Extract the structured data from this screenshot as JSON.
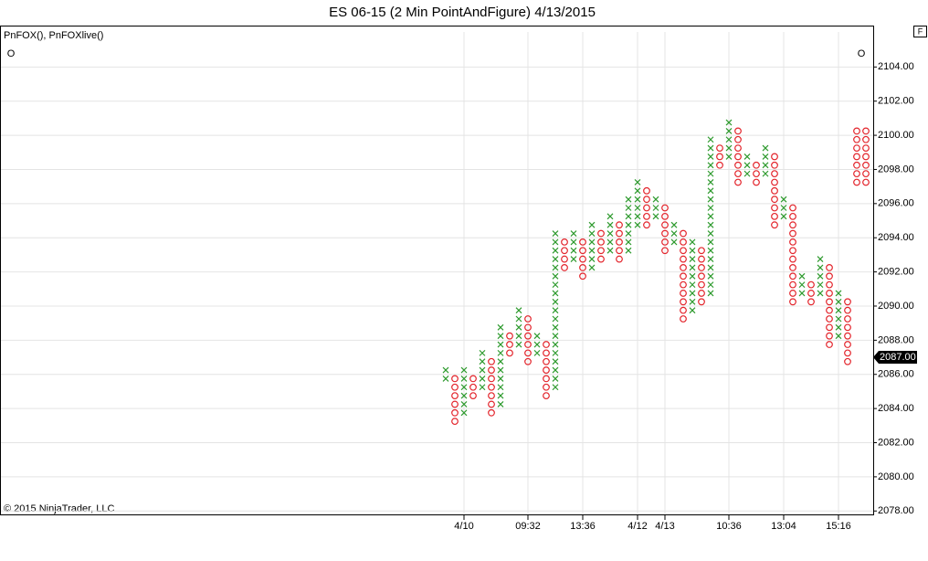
{
  "chart_data": {
    "type": "point-and-figure",
    "title": "ES 06-15 (2 Min PointAndFigure)  4/13/2015",
    "indicator_label": "PnFOX(), PnFOXlive()",
    "corner_marks": [
      "O",
      "O"
    ],
    "flag": "F",
    "copyright": "© 2015 NinjaTrader, LLC",
    "box_size": 0.5,
    "x_color": "#2e9a2e",
    "o_color": "#e3242b",
    "grid": true,
    "ylim": [
      2077.8,
      2106.05
    ],
    "xlim": [
      -48.8,
      46.8
    ],
    "yticks": [
      {
        "value": 2078,
        "label": "2078.00"
      },
      {
        "value": 2080,
        "label": "2080.00"
      },
      {
        "value": 2082,
        "label": "2082.00"
      },
      {
        "value": 2084,
        "label": "2084.00"
      },
      {
        "value": 2086,
        "label": "2086.00"
      },
      {
        "value": 2088,
        "label": "2088.00"
      },
      {
        "value": 2090,
        "label": "2090.00"
      },
      {
        "value": 2092,
        "label": "2092.00"
      },
      {
        "value": 2094,
        "label": "2094.00"
      },
      {
        "value": 2096,
        "label": "2096.00"
      },
      {
        "value": 2098,
        "label": "2098.00"
      },
      {
        "value": 2100,
        "label": "2100.00"
      },
      {
        "value": 2102,
        "label": "2102.00"
      },
      {
        "value": 2104,
        "label": "2104.00"
      }
    ],
    "xticks": [
      {
        "value": 2,
        "label": "4/10"
      },
      {
        "value": 9,
        "label": "09:32"
      },
      {
        "value": 15,
        "label": "13:36"
      },
      {
        "value": 21,
        "label": "4/12"
      },
      {
        "value": 24,
        "label": "4/13"
      },
      {
        "value": 31,
        "label": "10:36"
      },
      {
        "value": 37,
        "label": "13:04"
      },
      {
        "value": 43,
        "label": "15:16"
      }
    ],
    "last_price": {
      "value": 2087,
      "label": "2087.00"
    },
    "columns": [
      {
        "kind": "X",
        "high": 2086.25,
        "low": 2085.75
      },
      {
        "kind": "O",
        "high": 2085.75,
        "low": 2083.25
      },
      {
        "kind": "X",
        "high": 2086.25,
        "low": 2083.75
      },
      {
        "kind": "O",
        "high": 2085.75,
        "low": 2084.75
      },
      {
        "kind": "X",
        "high": 2087.25,
        "low": 2085.25
      },
      {
        "kind": "O",
        "high": 2086.75,
        "low": 2083.75
      },
      {
        "kind": "X",
        "high": 2088.75,
        "low": 2084.25
      },
      {
        "kind": "O",
        "high": 2088.25,
        "low": 2087.25
      },
      {
        "kind": "X",
        "high": 2089.75,
        "low": 2087.75
      },
      {
        "kind": "O",
        "high": 2089.25,
        "low": 2086.75
      },
      {
        "kind": "X",
        "high": 2088.25,
        "low": 2087.25
      },
      {
        "kind": "O",
        "high": 2087.75,
        "low": 2084.75
      },
      {
        "kind": "X",
        "high": 2094.25,
        "low": 2085.25
      },
      {
        "kind": "O",
        "high": 2093.75,
        "low": 2092.25
      },
      {
        "kind": "X",
        "high": 2094.25,
        "low": 2092.75
      },
      {
        "kind": "O",
        "high": 2093.75,
        "low": 2091.75
      },
      {
        "kind": "X",
        "high": 2094.75,
        "low": 2092.25
      },
      {
        "kind": "O",
        "high": 2094.25,
        "low": 2092.75
      },
      {
        "kind": "X",
        "high": 2095.25,
        "low": 2093.25
      },
      {
        "kind": "O",
        "high": 2094.75,
        "low": 2092.75
      },
      {
        "kind": "X",
        "high": 2096.25,
        "low": 2093.25
      },
      {
        "kind": "X",
        "high": 2097.25,
        "low": 2094.75
      },
      {
        "kind": "O",
        "high": 2096.75,
        "low": 2094.75
      },
      {
        "kind": "X",
        "high": 2096.25,
        "low": 2095.25
      },
      {
        "kind": "O",
        "high": 2095.75,
        "low": 2093.25
      },
      {
        "kind": "X",
        "high": 2094.75,
        "low": 2093.75
      },
      {
        "kind": "O",
        "high": 2094.25,
        "low": 2089.25
      },
      {
        "kind": "X",
        "high": 2093.75,
        "low": 2089.75
      },
      {
        "kind": "O",
        "high": 2093.25,
        "low": 2090.25
      },
      {
        "kind": "X",
        "high": 2099.75,
        "low": 2090.75
      },
      {
        "kind": "O",
        "high": 2099.25,
        "low": 2098.25
      },
      {
        "kind": "X",
        "high": 2100.75,
        "low": 2098.75
      },
      {
        "kind": "O",
        "high": 2100.25,
        "low": 2097.25
      },
      {
        "kind": "X",
        "high": 2098.75,
        "low": 2097.75
      },
      {
        "kind": "O",
        "high": 2098.25,
        "low": 2097.25
      },
      {
        "kind": "X",
        "high": 2099.25,
        "low": 2097.75
      },
      {
        "kind": "O",
        "high": 2098.75,
        "low": 2094.75
      },
      {
        "kind": "X",
        "high": 2096.25,
        "low": 2095.25
      },
      {
        "kind": "O",
        "high": 2095.75,
        "low": 2090.25
      },
      {
        "kind": "X",
        "high": 2091.75,
        "low": 2090.75
      },
      {
        "kind": "O",
        "high": 2091.25,
        "low": 2090.25
      },
      {
        "kind": "X",
        "high": 2092.75,
        "low": 2090.75
      },
      {
        "kind": "O",
        "high": 2092.25,
        "low": 2087.75
      },
      {
        "kind": "X",
        "high": 2090.75,
        "low": 2088.25
      },
      {
        "kind": "O",
        "high": 2090.25,
        "low": 2086.75
      },
      {
        "kind": "O",
        "high": 2100.25,
        "low": 2097.25
      },
      {
        "kind": "O",
        "high": 2100.25,
        "low": 2097.25
      }
    ]
  }
}
